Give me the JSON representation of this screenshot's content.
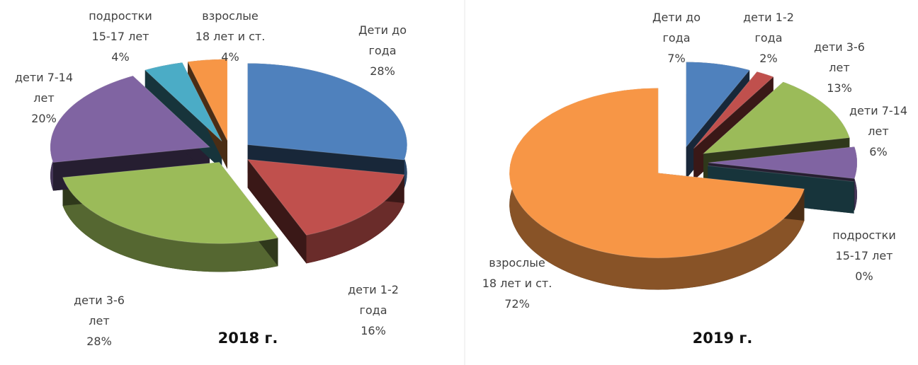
{
  "chart_data": [
    {
      "type": "pie",
      "title": "2018 г.",
      "categories": [
        "Дети до года",
        "дети 1-2 года",
        "дети 3-6 лет",
        "дети 7-14 лет",
        "подростки 15-17 лет",
        "взрослые 18 лет и ст."
      ],
      "values": [
        28,
        16,
        28,
        20,
        4,
        4
      ],
      "value_labels": [
        "28%",
        "16%",
        "28%",
        "20%",
        "4%",
        "4%"
      ],
      "colors": [
        "#4f81bd",
        "#c0504d",
        "#9bbb59",
        "#8064a2",
        "#4bacc6",
        "#f79646"
      ]
    },
    {
      "type": "pie",
      "title": "2019 г.",
      "categories": [
        "Дети до года",
        "дети 1-2 года",
        "дети 3-6 лет",
        "дети 7-14 лет",
        "подростки 15-17 лет",
        "взрослые 18 лет и ст."
      ],
      "values": [
        7,
        2,
        13,
        6,
        0,
        72
      ],
      "value_labels": [
        "7%",
        "2%",
        "13%",
        "6%",
        "0%",
        "72%"
      ],
      "colors": [
        "#4f81bd",
        "#c0504d",
        "#9bbb59",
        "#8064a2",
        "#4bacc6",
        "#f79646"
      ]
    }
  ]
}
